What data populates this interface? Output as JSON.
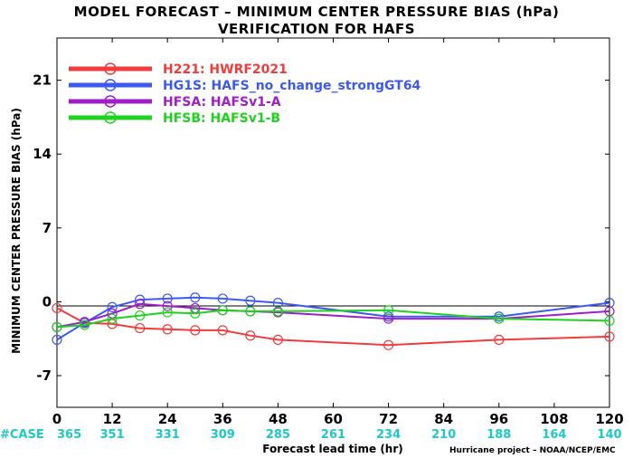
{
  "chart_data": {
    "type": "line",
    "title": "MODEL FORECAST – MINIMUM CENTER PRESSURE BIAS (hPa)",
    "subtitle": "VERIFICATION FOR HAFS",
    "xlabel": "Forecast lead time (hr)",
    "ylabel": "MINIMUM CENTER PRESSURE BIAS (hPa)",
    "xlim": [
      0,
      120
    ],
    "ylim": [
      -10,
      25
    ],
    "xticks": [
      "0",
      "12",
      "24",
      "36",
      "48",
      "60",
      "72",
      "84",
      "96",
      "108",
      "120"
    ],
    "yticks": [
      "21",
      "14",
      "7",
      "0",
      "-7"
    ],
    "zero_line": true,
    "legend_position": "top-left",
    "series": [
      {
        "name": "H221: HWRF2021",
        "color": "#f03c3c",
        "x": [
          0,
          6,
          12,
          18,
          24,
          30,
          36,
          42,
          48,
          72,
          96,
          120
        ],
        "y": [
          -0.6,
          -2.0,
          -2.1,
          -2.5,
          -2.6,
          -2.7,
          -2.7,
          -3.2,
          -3.6,
          -4.1,
          -3.6,
          -3.3
        ]
      },
      {
        "name": "HG1S: HAFS_no_change_strongGT64",
        "color": "#3c5af0",
        "x": [
          0,
          6,
          12,
          18,
          24,
          30,
          36,
          42,
          48,
          72,
          96,
          120
        ],
        "y": [
          -3.6,
          -2.0,
          -0.5,
          0.2,
          0.3,
          0.4,
          0.3,
          0.1,
          -0.1,
          -1.4,
          -1.4,
          -0.1
        ]
      },
      {
        "name": "HFSA: HAFSv1-A",
        "color": "#a01ec8",
        "x": [
          0,
          6,
          12,
          18,
          24,
          30,
          36,
          42,
          48,
          72,
          96,
          120
        ],
        "y": [
          -2.4,
          -1.9,
          -1.1,
          -0.2,
          -0.4,
          -0.6,
          -0.8,
          -0.9,
          -1.0,
          -1.6,
          -1.6,
          -0.9
        ]
      },
      {
        "name": "HFSB: HAFSv1-B",
        "color": "#1ed21e",
        "x": [
          0,
          6,
          12,
          18,
          24,
          30,
          36,
          42,
          48,
          72,
          96,
          120
        ],
        "y": [
          -2.4,
          -2.2,
          -1.6,
          -1.3,
          -1.0,
          -1.1,
          -0.8,
          -0.9,
          -0.9,
          -0.8,
          -1.6,
          -1.8
        ]
      }
    ],
    "case_label": "#CASE",
    "case_color": "#1ec8c8",
    "case_counts": [
      "365",
      "351",
      "331",
      "309",
      "285",
      "261",
      "234",
      "210",
      "188",
      "164",
      "140"
    ]
  },
  "credit": "Hurricane project – NOAA/NCEP/EMC"
}
